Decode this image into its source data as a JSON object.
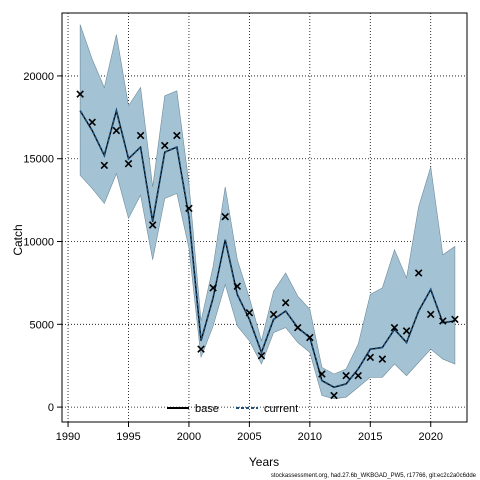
{
  "chart_data": {
    "type": "line",
    "xlabel": "Years",
    "ylabel": "Catch",
    "xlim": [
      1989.5,
      2023.0
    ],
    "ylim": [
      -900,
      23800
    ],
    "x_ticks": [
      1990,
      1995,
      2000,
      2005,
      2010,
      2015,
      2020
    ],
    "y_ticks": [
      0,
      5000,
      10000,
      15000,
      20000
    ],
    "grid": true,
    "legend_position": "bottom-center",
    "colors": {
      "band": "#a3c2d4",
      "band_edge": "#6f8c9c",
      "current": "#1c4f7a",
      "base": "#000000",
      "observed": "#000000"
    },
    "x": [
      1991,
      1992,
      1993,
      1994,
      1995,
      1996,
      1997,
      1998,
      1999,
      2000,
      2001,
      2002,
      2003,
      2004,
      2005,
      2006,
      2007,
      2008,
      2009,
      2010,
      2011,
      2012,
      2013,
      2014,
      2015,
      2016,
      2017,
      2018,
      2019,
      2020,
      2021,
      2022
    ],
    "series": [
      {
        "name": "current",
        "style": "dashed",
        "values": [
          17900,
          16700,
          15200,
          17900,
          15000,
          15700,
          11200,
          15400,
          15700,
          11500,
          4000,
          6600,
          10100,
          6800,
          5300,
          3300,
          5300,
          5800,
          4800,
          4200,
          1600,
          1200,
          1400,
          2300,
          3500,
          3600,
          4700,
          3900,
          5800,
          7100,
          5100,
          5200
        ]
      },
      {
        "name": "base",
        "style": "solid",
        "values": [
          17900,
          16700,
          15200,
          17900,
          15000,
          15700,
          11200,
          15400,
          15700,
          11500,
          4000,
          6600,
          10100,
          6800,
          5300,
          3300,
          5300,
          5800,
          4800,
          4200,
          1600,
          1200,
          1400,
          2300,
          3500,
          3600,
          4700,
          3900,
          5800,
          7100,
          5100,
          5200
        ]
      },
      {
        "name": "confidence-band",
        "upper": [
          23100,
          21000,
          19300,
          22500,
          18200,
          19300,
          13300,
          18800,
          19100,
          13500,
          5200,
          8500,
          13300,
          8900,
          6600,
          4000,
          7000,
          8100,
          6700,
          5900,
          2400,
          2000,
          2300,
          3800,
          6800,
          7200,
          9500,
          7800,
          12100,
          14500,
          9200,
          9700
        ],
        "lower": [
          14000,
          13200,
          12300,
          14100,
          11400,
          12800,
          8900,
          12600,
          12900,
          9600,
          3000,
          4900,
          7400,
          4900,
          4000,
          2600,
          4500,
          4800,
          3900,
          3300,
          700,
          500,
          600,
          1200,
          1800,
          1800,
          2600,
          1900,
          2700,
          3500,
          2900,
          2600
        ]
      }
    ],
    "observed": [
      18900,
      17200,
      14600,
      16700,
      14700,
      16400,
      11000,
      15800,
      16400,
      12000,
      3500,
      7200,
      11500,
      7300,
      5700,
      3100,
      5600,
      6300,
      4800,
      4200,
      2000,
      700,
      1900,
      1900,
      3000,
      2900,
      4800,
      4600,
      8100,
      5600,
      5200,
      5300
    ],
    "legend": [
      {
        "label": "base"
      },
      {
        "label": "current"
      }
    ],
    "footer": "stockassessment.org, had.27.6b_WKBGAD_PW5, r17766, git:ec2c2a0c6dde"
  }
}
